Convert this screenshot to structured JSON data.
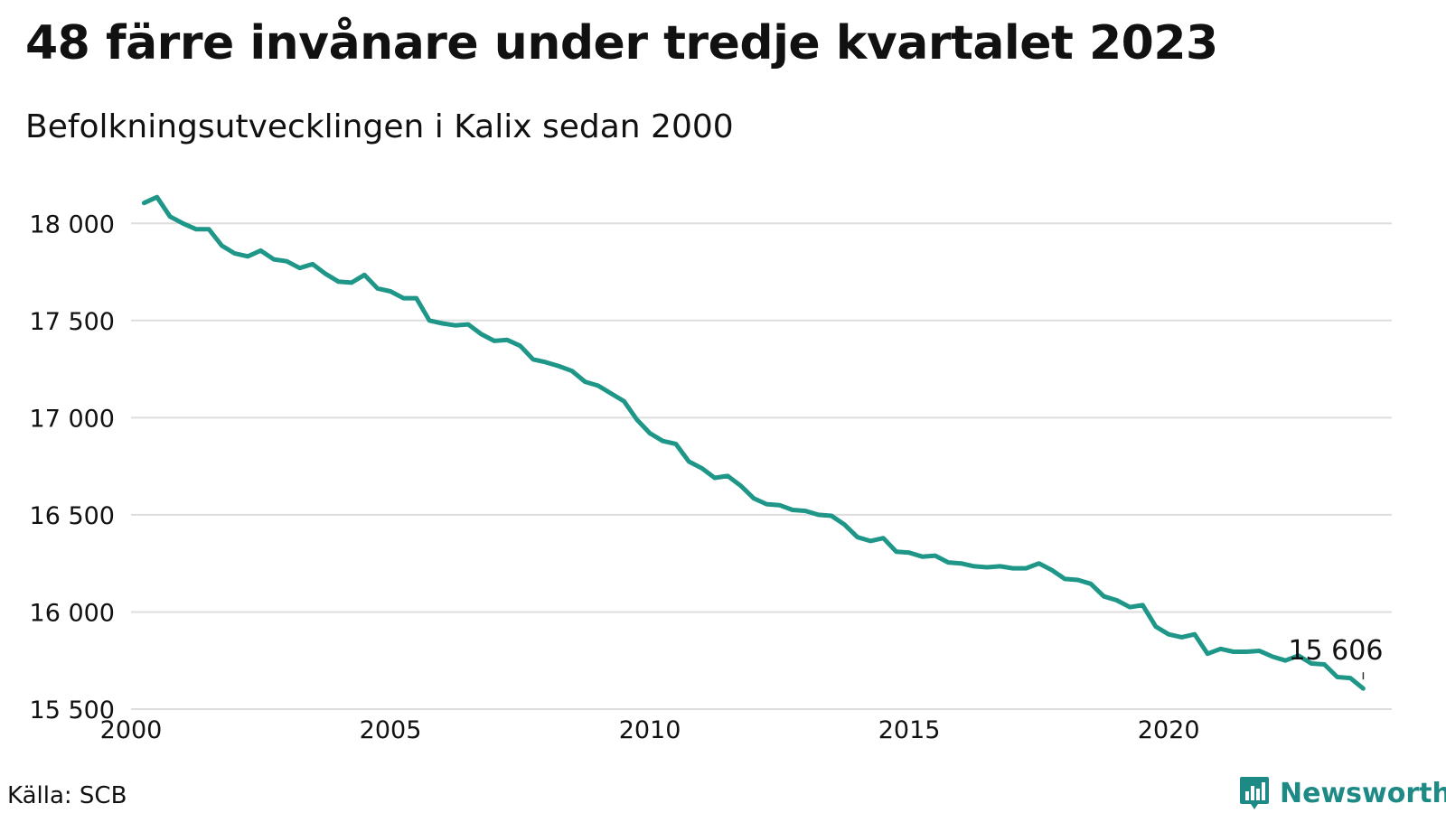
{
  "header": {
    "title": "48 färre invånare under tredje kvartalet 2023",
    "subtitle": "Befolkningsutvecklingen i Kalix sedan 2000"
  },
  "footer": {
    "source": "Källa: SCB",
    "brand": "Newsworthy",
    "brand_icon": "bar-chart-icon"
  },
  "colors": {
    "line": "#1e9688",
    "grid": "#dddddd",
    "brand": "#1e8a85"
  },
  "chart_data": {
    "type": "line",
    "title": "48 färre invånare under tredje kvartalet 2023",
    "subtitle": "Befolkningsutvecklingen i Kalix sedan 2000",
    "xlabel": "",
    "ylabel": "",
    "xlim": [
      2000,
      2024.3
    ],
    "ylim": [
      15500,
      18150
    ],
    "x_ticks": [
      2000,
      2005,
      2010,
      2015,
      2020
    ],
    "x_tick_labels": [
      "2000",
      "2005",
      "2010",
      "2015",
      "2020"
    ],
    "y_ticks": [
      15500,
      16000,
      16500,
      17000,
      17500,
      18000
    ],
    "y_tick_labels": [
      "15 500",
      "16 000",
      "16 500",
      "17 000",
      "17 500",
      "18 000"
    ],
    "grid": "horizontal",
    "legend": "none",
    "annotation": {
      "text": "15 606",
      "x": 2023.75,
      "y": 15606
    },
    "series": [
      {
        "name": "",
        "x": [
          2000.25,
          2000.5,
          2000.75,
          2001,
          2001.25,
          2001.5,
          2001.75,
          2002,
          2002.25,
          2002.5,
          2002.75,
          2003,
          2003.25,
          2003.5,
          2003.75,
          2004,
          2004.25,
          2004.5,
          2004.75,
          2005,
          2005.25,
          2005.5,
          2005.75,
          2006,
          2006.25,
          2006.5,
          2006.75,
          2007,
          2007.25,
          2007.5,
          2007.75,
          2008,
          2008.25,
          2008.5,
          2008.75,
          2009,
          2009.25,
          2009.5,
          2009.75,
          2010,
          2010.25,
          2010.5,
          2010.75,
          2011,
          2011.25,
          2011.5,
          2011.75,
          2012,
          2012.25,
          2012.5,
          2012.75,
          2013,
          2013.25,
          2013.5,
          2013.75,
          2014,
          2014.25,
          2014.5,
          2014.75,
          2015,
          2015.25,
          2015.5,
          2015.75,
          2016,
          2016.25,
          2016.5,
          2016.75,
          2017,
          2017.25,
          2017.5,
          2017.75,
          2018,
          2018.25,
          2018.5,
          2018.75,
          2019,
          2019.25,
          2019.5,
          2019.75,
          2020,
          2020.25,
          2020.5,
          2020.75,
          2021,
          2021.25,
          2021.5,
          2021.75,
          2022,
          2022.25,
          2022.5,
          2022.75,
          2023,
          2023.25,
          2023.5,
          2023.75
        ],
        "values": [
          18105,
          18135,
          18035,
          18000,
          17970,
          17970,
          17885,
          17845,
          17830,
          17860,
          17815,
          17805,
          17770,
          17790,
          17740,
          17700,
          17695,
          17735,
          17665,
          17650,
          17615,
          17615,
          17500,
          17485,
          17475,
          17480,
          17430,
          17395,
          17400,
          17370,
          17300,
          17285,
          17265,
          17240,
          17185,
          17165,
          17125,
          17085,
          16990,
          16920,
          16880,
          16865,
          16775,
          16740,
          16690,
          16700,
          16650,
          16585,
          16555,
          16550,
          16525,
          16520,
          16500,
          16495,
          16450,
          16385,
          16365,
          16380,
          16310,
          16305,
          16285,
          16290,
          16255,
          16250,
          16235,
          16230,
          16235,
          16225,
          16225,
          16250,
          16215,
          16170,
          16165,
          16145,
          16080,
          16060,
          16025,
          16035,
          15925,
          15885,
          15870,
          15885,
          15785,
          15810,
          15795,
          15795,
          15800,
          15770,
          15750,
          15775,
          15735,
          15730,
          15665,
          15660,
          15606
        ]
      }
    ]
  }
}
